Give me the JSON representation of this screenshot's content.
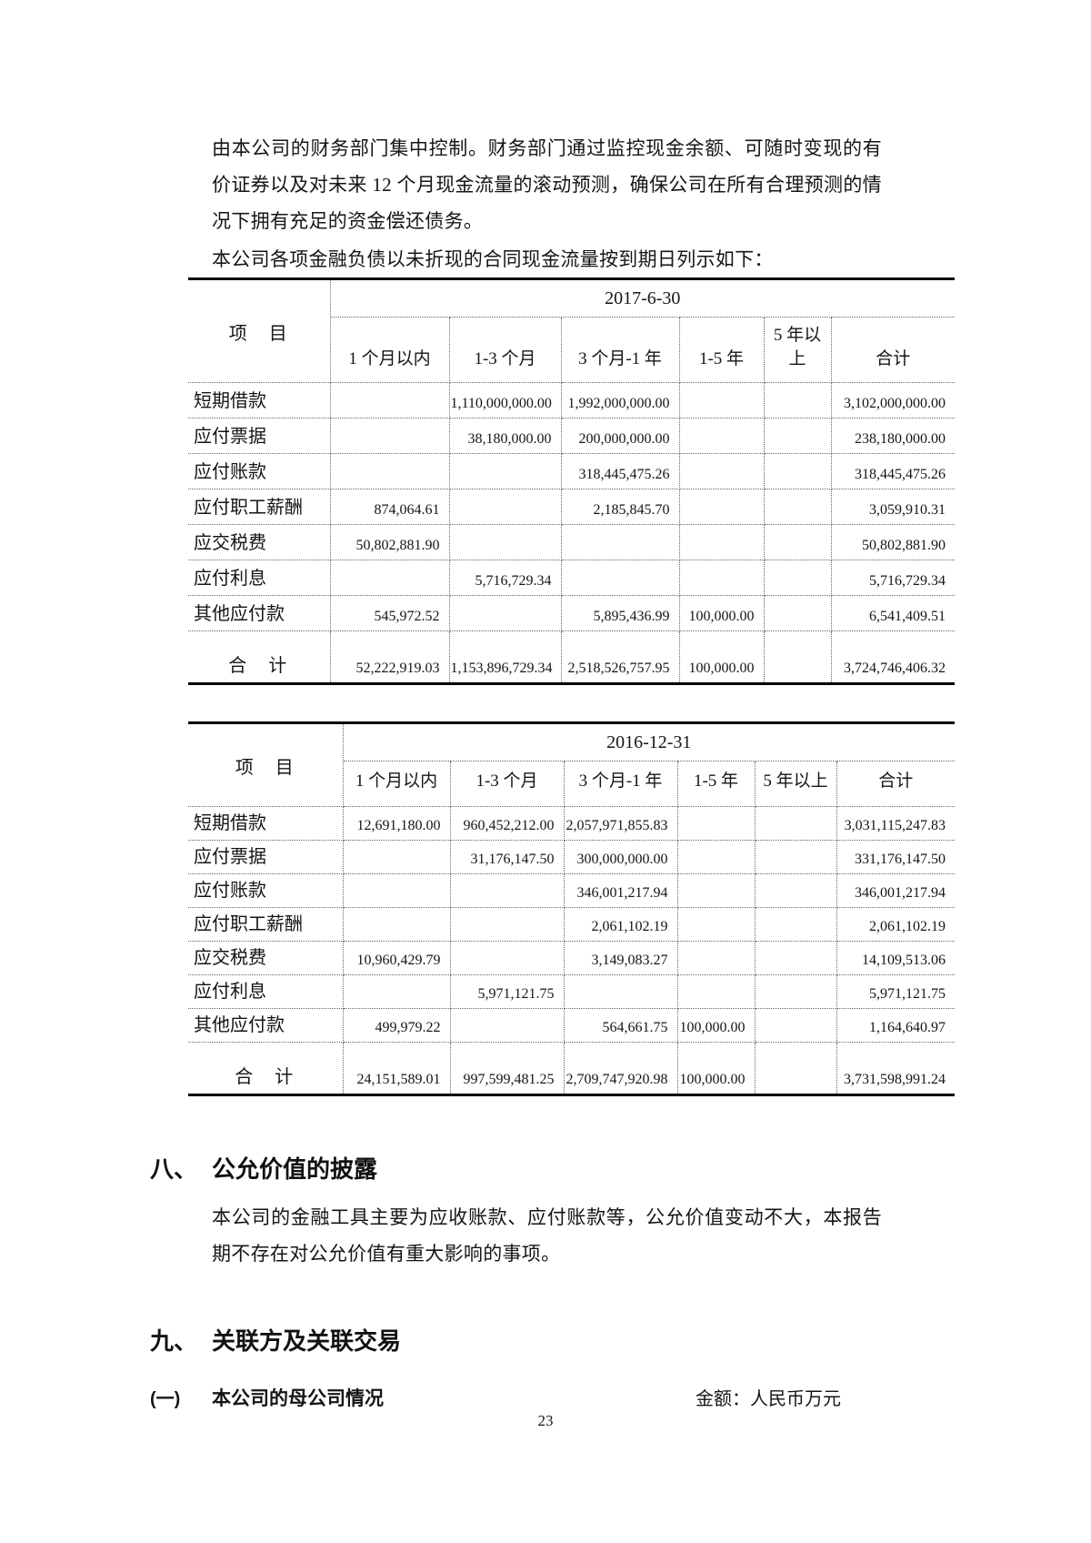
{
  "page": {
    "number": "23"
  },
  "intro": {
    "para1": "由本公司的财务部门集中控制。财务部门通过监控现金余额、可随时变现的有价证券以及对未来 12 个月现金流量的滚动预测，确保公司在所有合理预测的情况下拥有充足的资金偿还债务。",
    "para2": "本公司各项金融负债以未折现的合同现金流量按到期日列示如下："
  },
  "tables": [
    {
      "date_header": "2017-6-30",
      "item_header": "项　目",
      "columns": [
        "1 个月以内",
        "1-3 个月",
        "3 个月-1 年",
        "1-5 年",
        "5 年以上",
        "合计"
      ],
      "rows": [
        {
          "label": "短期借款",
          "values": [
            "",
            "1,110,000,000.00",
            "1,992,000,000.00",
            "",
            "",
            "3,102,000,000.00"
          ]
        },
        {
          "label": "应付票据",
          "values": [
            "",
            "38,180,000.00",
            "200,000,000.00",
            "",
            "",
            "238,180,000.00"
          ]
        },
        {
          "label": "应付账款",
          "values": [
            "",
            "",
            "318,445,475.26",
            "",
            "",
            "318,445,475.26"
          ]
        },
        {
          "label": "应付职工薪酬",
          "values": [
            "874,064.61",
            "",
            "2,185,845.70",
            "",
            "",
            "3,059,910.31"
          ]
        },
        {
          "label": "应交税费",
          "values": [
            "50,802,881.90",
            "",
            "",
            "",
            "",
            "50,802,881.90"
          ]
        },
        {
          "label": "应付利息",
          "values": [
            "",
            "5,716,729.34",
            "",
            "",
            "",
            "5,716,729.34"
          ]
        },
        {
          "label": "其他应付款",
          "values": [
            "545,972.52",
            "",
            "5,895,436.99",
            "100,000.00",
            "",
            "6,541,409.51"
          ]
        }
      ],
      "total_row": {
        "label": "合　计",
        "values": [
          "52,222,919.03",
          "1,153,896,729.34",
          "2,518,526,757.95",
          "100,000.00",
          "",
          "3,724,746,406.32"
        ]
      }
    },
    {
      "date_header": "2016-12-31",
      "item_header": "项　目",
      "columns": [
        "1 个月以内",
        "1-3 个月",
        "3 个月-1 年",
        "1-5 年",
        "5 年以上",
        "合计"
      ],
      "rows": [
        {
          "label": "短期借款",
          "values": [
            "12,691,180.00",
            "960,452,212.00",
            "2,057,971,855.83",
            "",
            "",
            "3,031,115,247.83"
          ]
        },
        {
          "label": "应付票据",
          "values": [
            "",
            "31,176,147.50",
            "300,000,000.00",
            "",
            "",
            "331,176,147.50"
          ]
        },
        {
          "label": "应付账款",
          "values": [
            "",
            "",
            "346,001,217.94",
            "",
            "",
            "346,001,217.94"
          ]
        },
        {
          "label": "应付职工薪酬",
          "values": [
            "",
            "",
            "2,061,102.19",
            "",
            "",
            "2,061,102.19"
          ]
        },
        {
          "label": "应交税费",
          "values": [
            "10,960,429.79",
            "",
            "3,149,083.27",
            "",
            "",
            "14,109,513.06"
          ]
        },
        {
          "label": "应付利息",
          "values": [
            "",
            "5,971,121.75",
            "",
            "",
            "",
            "5,971,121.75"
          ]
        },
        {
          "label": "其他应付款",
          "values": [
            "499,979.22",
            "",
            "564,661.75",
            "100,000.00",
            "",
            "1,164,640.97"
          ]
        }
      ],
      "total_row": {
        "label": "合　计",
        "values": [
          "24,151,589.01",
          "997,599,481.25",
          "2,709,747,920.98",
          "100,000.00",
          "",
          "3,731,598,991.24"
        ]
      }
    }
  ],
  "sections": [
    {
      "num": "八、",
      "title": "公允价值的披露",
      "body": "本公司的金融工具主要为应收账款、应付账款等，公允价值变动不大，本报告期不存在对公允价值有重大影响的事项。"
    },
    {
      "num": "九、",
      "title": "关联方及关联交易"
    }
  ],
  "subsection": {
    "num": "(一)",
    "title": "本公司的母公司情况",
    "note": "金额：人民币万元"
  }
}
